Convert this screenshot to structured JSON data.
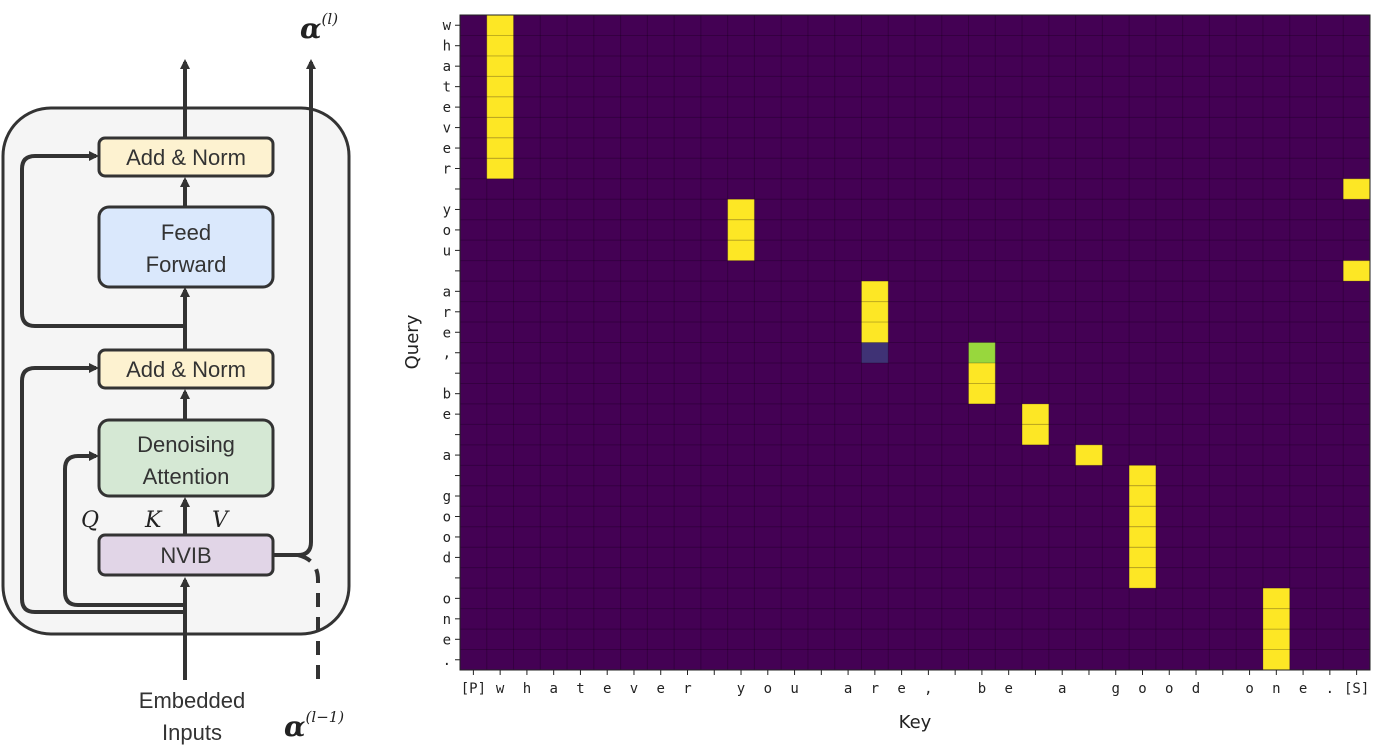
{
  "diagram": {
    "boxes": {
      "add_norm_top": "Add & Norm",
      "feed_forward_line1": "Feed",
      "feed_forward_line2": "Forward",
      "add_norm_bottom": "Add & Norm",
      "attention_line1": "Denoising",
      "attention_line2": "Attention",
      "nvib": "NVIB"
    },
    "inputs_line1": "Embedded",
    "inputs_line2": "Inputs",
    "q_label": "Q",
    "k_label": "K",
    "v_label": "V",
    "alpha_symbol": "α",
    "alpha_out_sup": "(l)",
    "alpha_in_sup": "(l−1)",
    "colors": {
      "add_norm": "#fdf2d0",
      "feed_forward": "#dae8fc",
      "attention": "#d5e8d4",
      "nvib": "#e1d5e7",
      "block_bg": "#f5f5f5",
      "stroke": "#333333"
    }
  },
  "chart_data": {
    "type": "heatmap",
    "xlabel": "Key",
    "ylabel": "Query",
    "x_ticks": [
      "[P]",
      "w",
      "h",
      "a",
      "t",
      "e",
      "v",
      "e",
      "r",
      "",
      "y",
      "o",
      "u",
      "",
      "a",
      "r",
      "e",
      ",",
      "",
      "b",
      "e",
      "",
      "a",
      "",
      "g",
      "o",
      "o",
      "d",
      "",
      "o",
      "n",
      "e",
      ".",
      "[S]"
    ],
    "y_ticks": [
      "w",
      "h",
      "a",
      "t",
      "e",
      "v",
      "e",
      "r",
      "",
      "y",
      "o",
      "u",
      "",
      "a",
      "r",
      "e",
      ",",
      "",
      "b",
      "e",
      "",
      "a",
      "",
      "g",
      "o",
      "o",
      "d",
      "",
      "o",
      "n",
      "e",
      "."
    ],
    "colormap": "viridis",
    "low_color": "#440154",
    "high_color": "#fde725",
    "cells": [
      {
        "row": 0,
        "col": 1,
        "value": 1.0
      },
      {
        "row": 1,
        "col": 1,
        "value": 1.0
      },
      {
        "row": 2,
        "col": 1,
        "value": 1.0
      },
      {
        "row": 3,
        "col": 1,
        "value": 1.0
      },
      {
        "row": 4,
        "col": 1,
        "value": 1.0
      },
      {
        "row": 5,
        "col": 1,
        "value": 1.0
      },
      {
        "row": 6,
        "col": 1,
        "value": 1.0
      },
      {
        "row": 7,
        "col": 1,
        "value": 1.0
      },
      {
        "row": 8,
        "col": 33,
        "value": 1.0
      },
      {
        "row": 9,
        "col": 10,
        "value": 1.0
      },
      {
        "row": 10,
        "col": 10,
        "value": 1.0
      },
      {
        "row": 11,
        "col": 10,
        "value": 1.0
      },
      {
        "row": 12,
        "col": 33,
        "value": 1.0
      },
      {
        "row": 13,
        "col": 15,
        "value": 1.0
      },
      {
        "row": 14,
        "col": 15,
        "value": 1.0
      },
      {
        "row": 15,
        "col": 15,
        "value": 1.0
      },
      {
        "row": 16,
        "col": 15,
        "value": 0.15
      },
      {
        "row": 16,
        "col": 19,
        "value": 0.85
      },
      {
        "row": 17,
        "col": 19,
        "value": 1.0
      },
      {
        "row": 18,
        "col": 19,
        "value": 1.0
      },
      {
        "row": 19,
        "col": 21,
        "value": 1.0
      },
      {
        "row": 20,
        "col": 21,
        "value": 1.0
      },
      {
        "row": 21,
        "col": 23,
        "value": 1.0
      },
      {
        "row": 22,
        "col": 25,
        "value": 1.0
      },
      {
        "row": 23,
        "col": 25,
        "value": 1.0
      },
      {
        "row": 24,
        "col": 25,
        "value": 1.0
      },
      {
        "row": 25,
        "col": 25,
        "value": 1.0
      },
      {
        "row": 26,
        "col": 25,
        "value": 1.0
      },
      {
        "row": 27,
        "col": 25,
        "value": 1.0
      },
      {
        "row": 28,
        "col": 30,
        "value": 1.0
      },
      {
        "row": 29,
        "col": 30,
        "value": 1.0
      },
      {
        "row": 30,
        "col": 30,
        "value": 1.0
      },
      {
        "row": 31,
        "col": 30,
        "value": 1.0
      }
    ]
  }
}
